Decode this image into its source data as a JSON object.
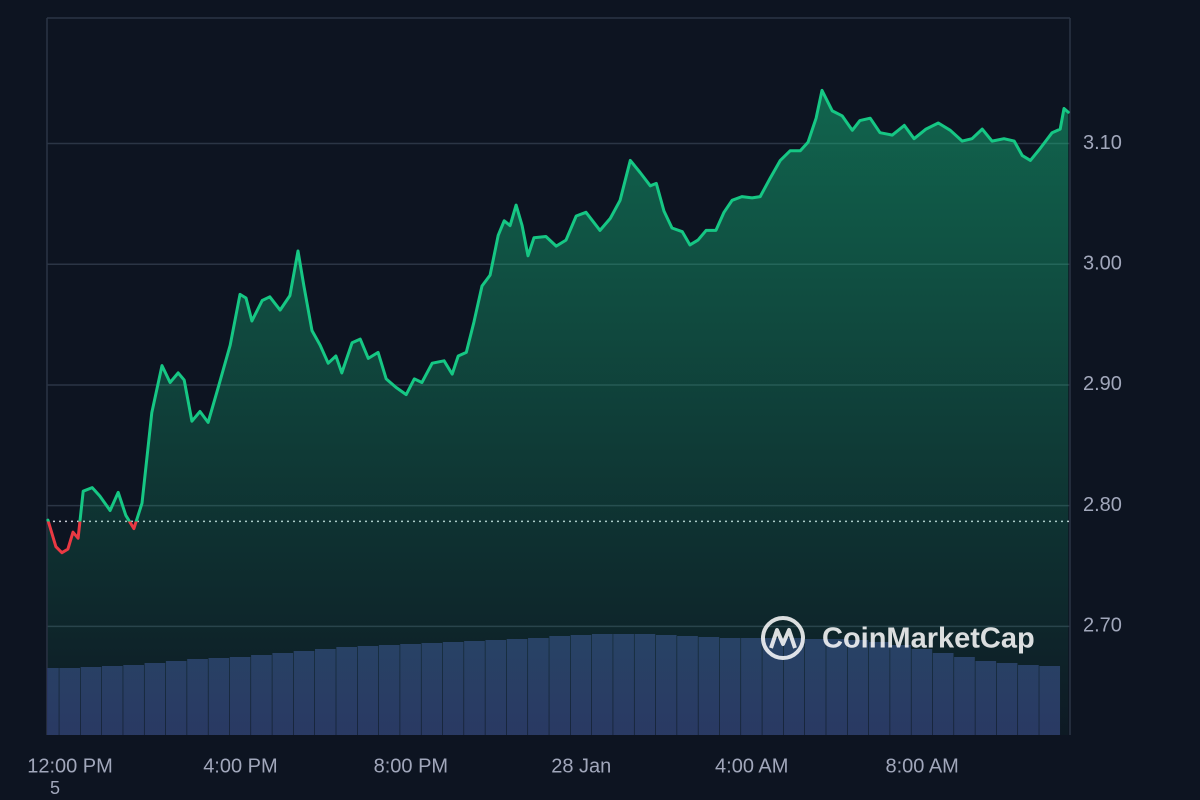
{
  "chart_data": {
    "type": "line",
    "up_color": "#16c784",
    "down_color": "#ea3943",
    "reference": 2.787,
    "watermark": "CoinMarketCap",
    "annotation": "5",
    "xlim": [
      -0.54,
      23.47
    ],
    "xticks": [
      {
        "value": 0,
        "label": "12:00 PM"
      },
      {
        "value": 4,
        "label": "4:00 PM"
      },
      {
        "value": 8,
        "label": "8:00 PM"
      },
      {
        "value": 12,
        "label": "28 Jan"
      },
      {
        "value": 16,
        "label": "4:00 AM"
      },
      {
        "value": 20,
        "label": "8:00 AM"
      }
    ],
    "ylim": [
      2.61,
      3.204
    ],
    "yticks": [
      {
        "value": 2.7,
        "label": "2.70"
      },
      {
        "value": 2.8,
        "label": "2.80"
      },
      {
        "value": 2.9,
        "label": "2.90"
      },
      {
        "value": 3.0,
        "label": "3.00"
      },
      {
        "value": 3.1,
        "label": "3.10"
      }
    ],
    "grid": true,
    "x": [
      -0.52,
      -0.33,
      -0.19,
      -0.05,
      0.07,
      0.19,
      0.31,
      0.52,
      0.7,
      0.94,
      1.13,
      1.31,
      1.5,
      1.69,
      1.92,
      2.16,
      2.35,
      2.54,
      2.68,
      2.86,
      3.05,
      3.24,
      3.47,
      3.76,
      3.99,
      4.13,
      4.27,
      4.51,
      4.69,
      4.93,
      5.16,
      5.35,
      5.49,
      5.68,
      5.87,
      6.06,
      6.24,
      6.38,
      6.62,
      6.81,
      7.0,
      7.23,
      7.42,
      7.65,
      7.89,
      8.08,
      8.26,
      8.5,
      8.78,
      8.97,
      9.11,
      9.3,
      9.48,
      9.67,
      9.86,
      10.05,
      10.19,
      10.33,
      10.47,
      10.61,
      10.75,
      10.89,
      11.17,
      11.41,
      11.64,
      11.88,
      12.11,
      12.44,
      12.68,
      12.91,
      13.15,
      13.38,
      13.62,
      13.76,
      13.94,
      14.13,
      14.37,
      14.55,
      14.74,
      14.93,
      15.16,
      15.35,
      15.54,
      15.77,
      16.01,
      16.2,
      16.43,
      16.67,
      16.9,
      17.14,
      17.32,
      17.51,
      17.65,
      17.89,
      18.12,
      18.36,
      18.54,
      18.78,
      19.01,
      19.3,
      19.58,
      19.81,
      20.09,
      20.38,
      20.66,
      20.94,
      21.17,
      21.41,
      21.64,
      21.92,
      22.16,
      22.35,
      22.54,
      22.77,
      23.05,
      23.24,
      23.33,
      23.43
    ],
    "values": [
      2.788,
      2.766,
      2.761,
      2.764,
      2.778,
      2.773,
      2.812,
      2.815,
      2.808,
      2.796,
      2.811,
      2.792,
      2.781,
      2.802,
      2.877,
      2.916,
      2.902,
      2.91,
      2.904,
      2.87,
      2.878,
      2.869,
      2.897,
      2.933,
      2.975,
      2.972,
      2.953,
      2.97,
      2.973,
      2.962,
      2.974,
      3.011,
      2.982,
      2.945,
      2.933,
      2.918,
      2.924,
      2.91,
      2.935,
      2.938,
      2.922,
      2.927,
      2.905,
      2.898,
      2.892,
      2.905,
      2.902,
      2.918,
      2.92,
      2.909,
      2.924,
      2.927,
      2.952,
      2.982,
      2.991,
      3.024,
      3.036,
      3.032,
      3.049,
      3.032,
      3.007,
      3.022,
      3.023,
      3.015,
      3.02,
      3.04,
      3.043,
      3.028,
      3.038,
      3.053,
      3.086,
      3.076,
      3.065,
      3.067,
      3.044,
      3.03,
      3.027,
      3.016,
      3.02,
      3.028,
      3.028,
      3.043,
      3.053,
      3.056,
      3.055,
      3.056,
      3.071,
      3.086,
      3.094,
      3.094,
      3.101,
      3.121,
      3.144,
      3.127,
      3.123,
      3.111,
      3.119,
      3.121,
      3.109,
      3.107,
      3.115,
      3.104,
      3.112,
      3.117,
      3.111,
      3.102,
      3.104,
      3.112,
      3.102,
      3.104,
      3.102,
      3.09,
      3.086,
      3.096,
      3.109,
      3.112,
      3.129,
      3.126
    ],
    "volume": {
      "color": "#2a3562",
      "x": [
        -0.5,
        0,
        0.5,
        1,
        1.5,
        2,
        2.5,
        3,
        3.5,
        4,
        4.5,
        5,
        5.5,
        6,
        6.5,
        7,
        7.5,
        8,
        8.5,
        9,
        9.5,
        10,
        10.5,
        11,
        11.5,
        12,
        12.5,
        13,
        13.5,
        14,
        14.5,
        15,
        15.5,
        16,
        16.5,
        17,
        17.5,
        18,
        18.5,
        19,
        19.5,
        20,
        20.5,
        21,
        21.5,
        22,
        22.5,
        23
      ],
      "values": [
        67,
        67,
        68,
        69,
        70,
        72,
        74,
        76,
        77,
        78,
        80,
        82,
        84,
        86,
        88,
        89,
        90,
        91,
        92,
        93,
        94,
        95,
        96,
        97,
        99,
        100,
        101,
        101,
        101,
        100,
        99,
        98,
        97,
        97,
        97,
        97,
        96,
        96,
        95,
        93,
        90,
        86,
        82,
        78,
        74,
        72,
        70,
        69
      ]
    }
  }
}
